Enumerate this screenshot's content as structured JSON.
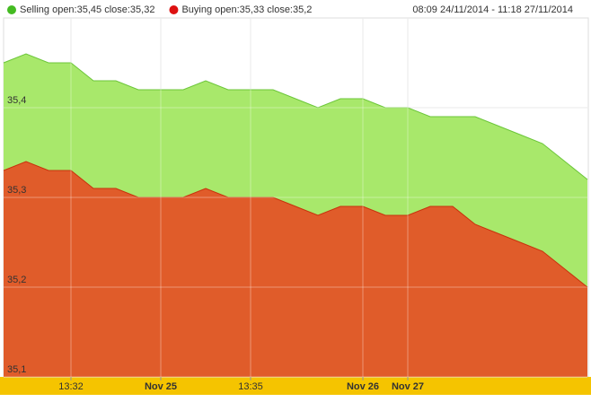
{
  "chart_data": {
    "type": "area",
    "date_range": "08:09 24/11/2014 - 11:18 27/11/2014",
    "categories": [
      null,
      null,
      null,
      "13:32",
      null,
      null,
      null,
      "Nov 25",
      null,
      null,
      null,
      "13:35",
      null,
      null,
      null,
      null,
      "Nov 26",
      null,
      "Nov 27",
      null,
      null,
      null,
      null,
      null,
      null,
      null,
      null
    ],
    "series": [
      {
        "name": "Selling open:35,45 close:35,32",
        "color": "#6cc63a",
        "fill": "#a8e86b",
        "values": [
          35.45,
          35.46,
          35.45,
          35.45,
          35.43,
          35.43,
          35.42,
          35.42,
          35.42,
          35.43,
          35.42,
          35.42,
          35.42,
          35.41,
          35.4,
          35.41,
          35.41,
          35.4,
          35.4,
          35.39,
          35.39,
          35.39,
          35.38,
          35.37,
          35.36,
          35.34,
          35.32
        ]
      },
      {
        "name": "Buying open:35,33 close:35,2",
        "color": "#c8320c",
        "fill": "#e05c2a",
        "values": [
          35.33,
          35.34,
          35.33,
          35.33,
          35.31,
          35.31,
          35.3,
          35.3,
          35.3,
          35.31,
          35.3,
          35.3,
          35.3,
          35.29,
          35.28,
          35.29,
          35.29,
          35.28,
          35.28,
          35.29,
          35.29,
          35.27,
          35.26,
          35.25,
          35.24,
          35.22,
          35.2
        ]
      }
    ],
    "ylim": [
      35.1,
      35.5
    ],
    "yticks": [
      {
        "value": 35.1,
        "label": "35,1"
      },
      {
        "value": 35.2,
        "label": "35,2"
      },
      {
        "value": 35.3,
        "label": "35,3"
      },
      {
        "value": 35.4,
        "label": "35,4"
      }
    ],
    "grid": true
  }
}
